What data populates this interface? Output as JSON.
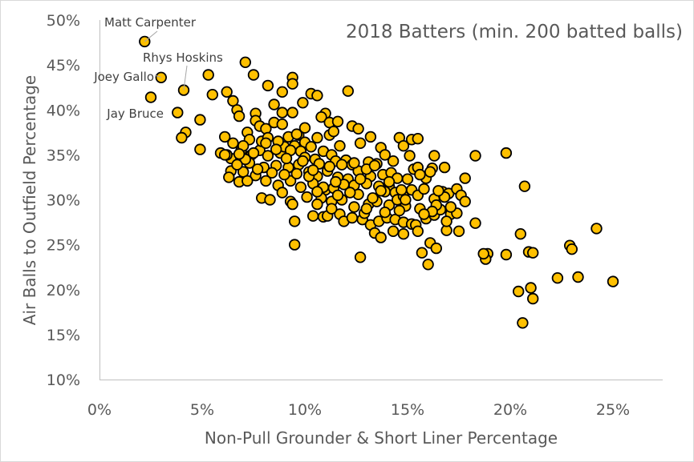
{
  "chart_data": {
    "type": "scatter",
    "title": "2018 Batters (min. 200 batted balls)",
    "xlabel": "Non-Pull Grounder & Short Liner Percentage",
    "ylabel": "Air Balls to Outfield Percentage",
    "xlim": [
      0,
      27.5
    ],
    "ylim": [
      10,
      50
    ],
    "x_ticks": [
      "0%",
      "5%",
      "10%",
      "15%",
      "20%",
      "25%"
    ],
    "y_ticks": [
      "10%",
      "15%",
      "20%",
      "25%",
      "30%",
      "35%",
      "40%",
      "45%",
      "50%"
    ],
    "x_tick_values": [
      0,
      5,
      10,
      15,
      20,
      25
    ],
    "y_tick_values": [
      10,
      15,
      20,
      25,
      30,
      35,
      40,
      45,
      50
    ],
    "grid": false,
    "legend": "none",
    "marker_color": "#ffc000",
    "annotations": [
      {
        "label": "Matt Carpenter",
        "x": 2.2,
        "y": 47.6
      },
      {
        "label": "Rhys Hoskins",
        "x": 4.1,
        "y": 42.2
      },
      {
        "label": "Joey Gallo",
        "x": 3.0,
        "y": 43.6
      },
      {
        "label": "Jay Bruce",
        "x": 3.8,
        "y": 39.7
      }
    ],
    "points": [
      [
        2.2,
        47.6
      ],
      [
        3.0,
        43.6
      ],
      [
        4.1,
        42.2
      ],
      [
        2.5,
        41.4
      ],
      [
        3.8,
        39.7
      ],
      [
        4.9,
        38.9
      ],
      [
        4.2,
        37.5
      ],
      [
        4.0,
        36.9
      ],
      [
        4.9,
        35.6
      ],
      [
        5.3,
        43.9
      ],
      [
        7.1,
        45.3
      ],
      [
        7.5,
        43.9
      ],
      [
        8.2,
        42.7
      ],
      [
        9.4,
        43.6
      ],
      [
        9.4,
        42.9
      ],
      [
        8.9,
        42.0
      ],
      [
        10.3,
        41.8
      ],
      [
        10.6,
        41.6
      ],
      [
        12.1,
        42.1
      ],
      [
        5.5,
        41.7
      ],
      [
        6.2,
        42.0
      ],
      [
        6.5,
        41.0
      ],
      [
        6.7,
        40.0
      ],
      [
        6.8,
        39.3
      ],
      [
        8.5,
        40.6
      ],
      [
        9.9,
        40.8
      ],
      [
        7.6,
        39.6
      ],
      [
        8.9,
        39.7
      ],
      [
        9.4,
        39.7
      ],
      [
        11.0,
        39.6
      ],
      [
        10.8,
        39.2
      ],
      [
        11.2,
        38.6
      ],
      [
        11.6,
        38.7
      ],
      [
        12.3,
        38.2
      ],
      [
        12.6,
        37.9
      ],
      [
        11.2,
        37.2
      ],
      [
        13.2,
        37.0
      ],
      [
        12.7,
        36.3
      ],
      [
        14.6,
        36.9
      ],
      [
        15.2,
        36.7
      ],
      [
        15.5,
        36.8
      ],
      [
        13.7,
        35.8
      ],
      [
        14.8,
        36.0
      ],
      [
        15.1,
        34.9
      ],
      [
        16.3,
        34.9
      ],
      [
        6.1,
        37.0
      ],
      [
        7.2,
        37.5
      ],
      [
        7.6,
        38.8
      ],
      [
        7.8,
        38.2
      ],
      [
        8.1,
        37.9
      ],
      [
        8.5,
        38.6
      ],
      [
        8.9,
        38.4
      ],
      [
        9.2,
        37.0
      ],
      [
        9.7,
        37.2
      ],
      [
        10.0,
        36.4
      ],
      [
        6.5,
        36.3
      ],
      [
        6.9,
        35.5
      ],
      [
        7.3,
        36.7
      ],
      [
        6.4,
        34.6
      ],
      [
        7.4,
        35.0
      ],
      [
        7.8,
        35.5
      ],
      [
        8.2,
        34.9
      ],
      [
        8.8,
        35.2
      ],
      [
        9.0,
        35.9
      ],
      [
        9.5,
        36.0
      ],
      [
        9.8,
        35.4
      ],
      [
        10.3,
        35.9
      ],
      [
        10.5,
        34.5
      ],
      [
        10.9,
        35.4
      ],
      [
        11.3,
        35.0
      ],
      [
        11.5,
        34.3
      ],
      [
        12.0,
        34.4
      ],
      [
        12.3,
        33.9
      ],
      [
        13.1,
        34.2
      ],
      [
        13.5,
        34.0
      ],
      [
        5.9,
        35.2
      ],
      [
        6.4,
        33.2
      ],
      [
        7.0,
        33.1
      ],
      [
        7.3,
        34.1
      ],
      [
        8.0,
        33.6
      ],
      [
        8.6,
        33.8
      ],
      [
        9.2,
        33.6
      ],
      [
        9.7,
        33.9
      ],
      [
        10.2,
        33.1
      ],
      [
        10.6,
        32.6
      ],
      [
        11.1,
        33.2
      ],
      [
        11.6,
        32.5
      ],
      [
        12.1,
        32.3
      ],
      [
        12.6,
        33.2
      ],
      [
        13.2,
        32.6
      ],
      [
        13.8,
        32.8
      ],
      [
        14.2,
        33.0
      ],
      [
        14.5,
        32.4
      ],
      [
        6.3,
        32.5
      ],
      [
        6.8,
        32.0
      ],
      [
        7.6,
        32.7
      ],
      [
        8.1,
        32.1
      ],
      [
        8.7,
        31.6
      ],
      [
        9.3,
        32.1
      ],
      [
        9.8,
        31.4
      ],
      [
        10.4,
        31.8
      ],
      [
        11.0,
        31.1
      ],
      [
        11.4,
        31.3
      ],
      [
        11.9,
        31.7
      ],
      [
        12.4,
        31.6
      ],
      [
        13.0,
        31.8
      ],
      [
        13.6,
        31.5
      ],
      [
        14.1,
        31.5
      ],
      [
        14.4,
        30.8
      ],
      [
        7.9,
        30.2
      ],
      [
        8.3,
        30.0
      ],
      [
        9.3,
        29.8
      ],
      [
        9.4,
        29.5
      ],
      [
        10.1,
        30.3
      ],
      [
        10.8,
        30.2
      ],
      [
        11.3,
        29.8
      ],
      [
        11.8,
        30.0
      ],
      [
        12.4,
        29.2
      ],
      [
        13.1,
        29.5
      ],
      [
        13.5,
        29.8
      ],
      [
        14.1,
        29.4
      ],
      [
        14.5,
        30.0
      ],
      [
        14.8,
        30.4
      ],
      [
        15.2,
        31.1
      ],
      [
        15.5,
        30.5
      ],
      [
        15.8,
        31.2
      ],
      [
        16.3,
        30.1
      ],
      [
        16.7,
        30.9
      ],
      [
        17.0,
        30.7
      ],
      [
        17.4,
        31.2
      ],
      [
        17.6,
        30.5
      ],
      [
        15.0,
        32.3
      ],
      [
        15.3,
        33.4
      ],
      [
        15.5,
        33.6
      ],
      [
        16.2,
        33.5
      ],
      [
        16.8,
        33.6
      ],
      [
        17.8,
        32.4
      ],
      [
        9.5,
        27.6
      ],
      [
        10.4,
        28.2
      ],
      [
        10.9,
        28.1
      ],
      [
        11.1,
        28.2
      ],
      [
        11.7,
        28.4
      ],
      [
        11.9,
        27.6
      ],
      [
        12.3,
        28.0
      ],
      [
        12.8,
        27.8
      ],
      [
        13.2,
        27.2
      ],
      [
        13.6,
        27.6
      ],
      [
        14.0,
        28.0
      ],
      [
        14.4,
        27.8
      ],
      [
        14.8,
        27.5
      ],
      [
        15.2,
        27.3
      ],
      [
        15.4,
        27.2
      ],
      [
        15.9,
        27.9
      ],
      [
        16.3,
        28.3
      ],
      [
        16.6,
        28.9
      ],
      [
        17.1,
        28.4
      ],
      [
        17.4,
        28.5
      ],
      [
        17.8,
        29.8
      ],
      [
        18.3,
        27.4
      ],
      [
        13.4,
        26.3
      ],
      [
        13.7,
        25.8
      ],
      [
        14.3,
        26.5
      ],
      [
        14.8,
        26.2
      ],
      [
        15.5,
        26.5
      ],
      [
        16.1,
        25.2
      ],
      [
        16.4,
        24.6
      ],
      [
        16.9,
        26.6
      ],
      [
        17.5,
        26.5
      ],
      [
        9.5,
        25.0
      ],
      [
        12.7,
        23.6
      ],
      [
        15.7,
        24.1
      ],
      [
        16.0,
        22.8
      ],
      [
        18.9,
        24.0
      ],
      [
        18.8,
        23.4
      ],
      [
        19.8,
        23.9
      ],
      [
        20.9,
        24.2
      ],
      [
        21.1,
        24.1
      ],
      [
        20.5,
        26.2
      ],
      [
        19.8,
        35.2
      ],
      [
        20.7,
        31.5
      ],
      [
        18.3,
        34.9
      ],
      [
        22.9,
        24.9
      ],
      [
        23.0,
        24.5
      ],
      [
        24.2,
        26.8
      ],
      [
        22.3,
        21.3
      ],
      [
        23.3,
        21.4
      ],
      [
        25.0,
        20.9
      ],
      [
        20.4,
        19.8
      ],
      [
        21.0,
        20.2
      ],
      [
        21.1,
        19.0
      ],
      [
        20.6,
        16.3
      ],
      [
        18.7,
        24.0
      ],
      [
        16.8,
        30.3
      ],
      [
        16.4,
        29.4
      ],
      [
        16.9,
        27.6
      ],
      [
        16.2,
        28.7
      ],
      [
        15.6,
        29.0
      ],
      [
        14.9,
        29.3
      ],
      [
        13.9,
        30.9
      ],
      [
        13.3,
        30.2
      ],
      [
        12.6,
        30.6
      ],
      [
        11.6,
        30.5
      ],
      [
        10.9,
        31.4
      ],
      [
        10.2,
        32.6
      ],
      [
        9.6,
        32.9
      ],
      [
        9.0,
        32.8
      ],
      [
        8.4,
        33.0
      ],
      [
        7.7,
        33.4
      ],
      [
        7.1,
        34.5
      ],
      [
        6.7,
        33.9
      ],
      [
        6.2,
        35.0
      ],
      [
        7.0,
        36.0
      ],
      [
        7.9,
        36.5
      ],
      [
        8.7,
        36.5
      ],
      [
        9.3,
        35.5
      ],
      [
        10.0,
        34.7
      ],
      [
        10.7,
        34.0
      ],
      [
        11.2,
        33.7
      ],
      [
        11.8,
        33.9
      ],
      [
        12.4,
        34.1
      ],
      [
        13.0,
        33.4
      ],
      [
        13.4,
        33.8
      ],
      [
        14.1,
        32.0
      ],
      [
        12.2,
        30.8
      ],
      [
        11.3,
        29.0
      ],
      [
        10.6,
        29.5
      ],
      [
        12.9,
        28.5
      ],
      [
        14.6,
        28.8
      ],
      [
        15.8,
        28.4
      ],
      [
        17.1,
        29.2
      ],
      [
        16.5,
        31.0
      ],
      [
        15.9,
        32.4
      ],
      [
        14.7,
        31.1
      ],
      [
        13.7,
        31.0
      ],
      [
        12.7,
        32.3
      ],
      [
        11.5,
        32.0
      ],
      [
        10.4,
        33.3
      ],
      [
        9.9,
        34.3
      ],
      [
        9.1,
        34.6
      ],
      [
        8.6,
        35.6
      ],
      [
        7.5,
        35.2
      ],
      [
        6.8,
        35.1
      ],
      [
        6.1,
        35.0
      ],
      [
        8.2,
        36.9
      ],
      [
        9.6,
        37.3
      ],
      [
        10.6,
        36.9
      ],
      [
        11.7,
        36.0
      ],
      [
        13.9,
        35.0
      ],
      [
        14.3,
        34.3
      ],
      [
        7.2,
        32.1
      ],
      [
        8.9,
        30.8
      ],
      [
        10.6,
        30.9
      ],
      [
        13.0,
        29.0
      ],
      [
        14.9,
        30.0
      ],
      [
        16.1,
        33.1
      ],
      [
        15.6,
        32.8
      ],
      [
        11.4,
        37.6
      ],
      [
        10.0,
        38.0
      ],
      [
        8.1,
        36.3
      ],
      [
        13.9,
        28.6
      ]
    ]
  }
}
